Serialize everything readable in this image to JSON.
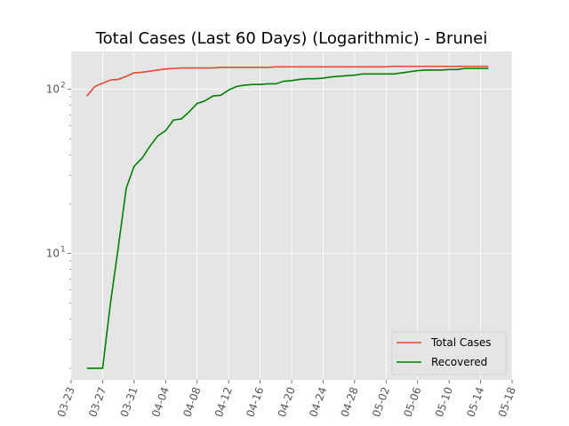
{
  "chart_data": {
    "type": "line",
    "title": "Total Cases (Last 60 Days) (Logarithmic) - Brunei",
    "xlabel": "",
    "ylabel": "",
    "yscale": "log",
    "ylim": [
      1.7,
      170
    ],
    "xlim": [
      "2020-03-23",
      "2020-05-18"
    ],
    "x_ticks": [
      "03-23",
      "03-27",
      "03-31",
      "04-04",
      "04-08",
      "04-12",
      "04-16",
      "04-20",
      "04-24",
      "04-28",
      "05-02",
      "05-06",
      "05-10",
      "05-14",
      "05-18"
    ],
    "y_ticks": [
      {
        "value": 10,
        "label": "10",
        "exp": "1"
      },
      {
        "value": 100,
        "label": "10",
        "exp": "2"
      }
    ],
    "grid": true,
    "legend_position": "bottom-right",
    "colors": {
      "background": "#e5e5e5",
      "grid": "#ffffff",
      "total": "#e24a33",
      "recovered": "#008000"
    },
    "x": [
      "2020-03-25",
      "2020-03-26",
      "2020-03-27",
      "2020-03-28",
      "2020-03-29",
      "2020-03-30",
      "2020-03-31",
      "2020-04-01",
      "2020-04-02",
      "2020-04-03",
      "2020-04-04",
      "2020-04-05",
      "2020-04-06",
      "2020-04-07",
      "2020-04-08",
      "2020-04-09",
      "2020-04-10",
      "2020-04-11",
      "2020-04-12",
      "2020-04-13",
      "2020-04-14",
      "2020-04-15",
      "2020-04-16",
      "2020-04-17",
      "2020-04-18",
      "2020-04-19",
      "2020-04-20",
      "2020-04-21",
      "2020-04-22",
      "2020-04-23",
      "2020-04-24",
      "2020-04-25",
      "2020-04-26",
      "2020-04-27",
      "2020-04-28",
      "2020-04-29",
      "2020-04-30",
      "2020-05-01",
      "2020-05-02",
      "2020-05-03",
      "2020-05-04",
      "2020-05-05",
      "2020-05-06",
      "2020-05-07",
      "2020-05-08",
      "2020-05-09",
      "2020-05-10",
      "2020-05-11",
      "2020-05-12",
      "2020-05-13",
      "2020-05-14",
      "2020-05-15"
    ],
    "series": [
      {
        "name": "Total Cases",
        "values": [
          91,
          104,
          109,
          114,
          115,
          120,
          126,
          127,
          129,
          131,
          133,
          134,
          135,
          135,
          135,
          135,
          135,
          136,
          136,
          136,
          136,
          136,
          136,
          136,
          137,
          137,
          137,
          137,
          137,
          137,
          137,
          137,
          137,
          137,
          137,
          137,
          137,
          137,
          137,
          138,
          138,
          138,
          138,
          138,
          138,
          138,
          138,
          138,
          138,
          138,
          138,
          138
        ]
      },
      {
        "name": "Recovered",
        "values": [
          2,
          2,
          2,
          5,
          11,
          25,
          34,
          38,
          45,
          52,
          56,
          65,
          66,
          73,
          82,
          85,
          91,
          92,
          99,
          104,
          106,
          107,
          107,
          108,
          108,
          112,
          113,
          115,
          116,
          116,
          117,
          119,
          120,
          121,
          122,
          124,
          124,
          124,
          124,
          124,
          126,
          128,
          130,
          131,
          131,
          131,
          132,
          132,
          134,
          134,
          134,
          134
        ]
      }
    ]
  }
}
